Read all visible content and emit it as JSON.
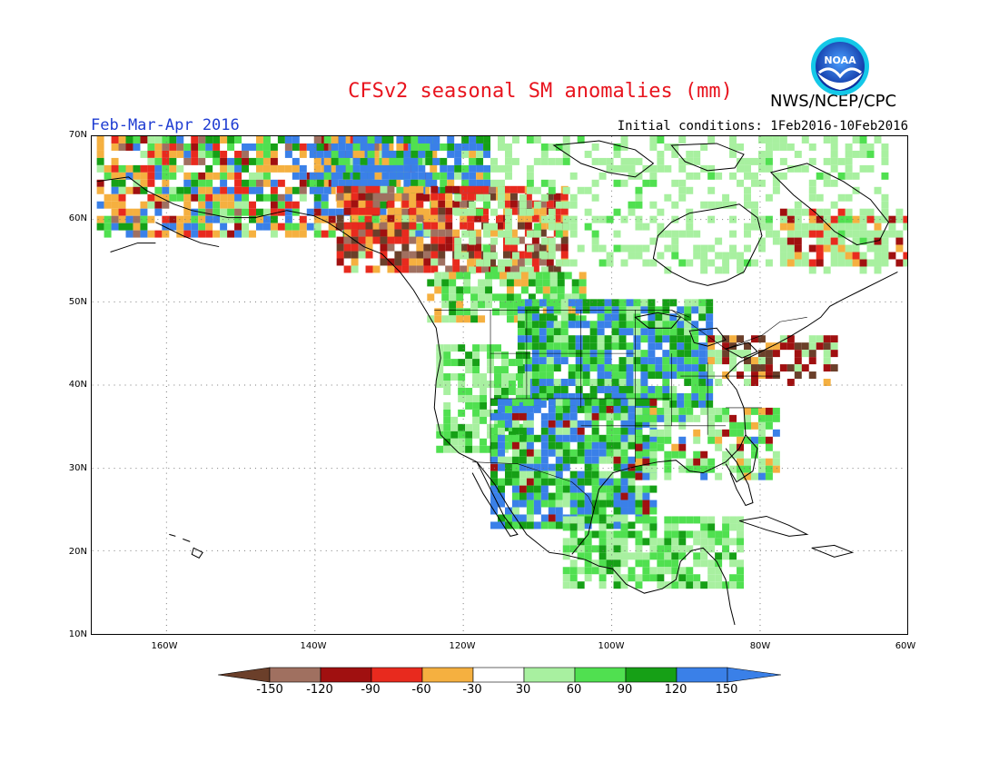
{
  "title": "CFSv2 seasonal SM anomalies (mm)",
  "season": "Feb-Mar-Apr 2016",
  "initial_conditions": "Initial conditions: 1Feb2016-10Feb2016",
  "agency": "NWS/NCEP/CPC",
  "logo_text": "NOAA",
  "lat_labels": [
    "70N",
    "60N",
    "50N",
    "40N",
    "30N",
    "20N",
    "10N"
  ],
  "lon_labels": [
    "160W",
    "140W",
    "120W",
    "100W",
    "80W",
    "60W"
  ],
  "colorbar": {
    "labels": [
      "-150",
      "-120",
      "-90",
      "-60",
      "-30",
      "30",
      "60",
      "90",
      "120",
      "150"
    ],
    "colors": [
      "#6b3f2a",
      "#a07060",
      "#a01010",
      "#e82a1e",
      "#f5b040",
      "#ffffff",
      "#a8f0a0",
      "#50e050",
      "#16a016",
      "#3a80e8",
      "#3a80e8"
    ]
  },
  "legend_colors": {
    "dry_extreme": "#6b3f2a",
    "dry_strong": "#a07060",
    "dry_very": "#a01010",
    "dry": "#e82a1e",
    "dry_light": "#f5b040",
    "neutral": "#ffffff",
    "wet_light": "#a8f0a0",
    "wet": "#50e050",
    "wet_strong": "#16a016",
    "wet_extreme": "#3a80e8"
  }
}
